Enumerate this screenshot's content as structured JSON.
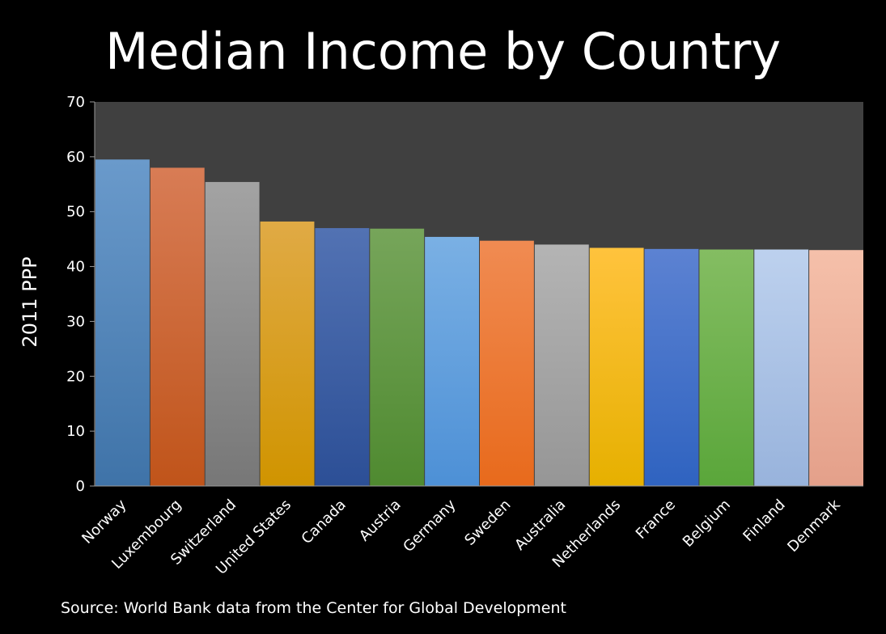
{
  "chart_data": {
    "type": "bar",
    "title": "Median Income by Country",
    "ylabel": "2011 PPP",
    "xlabel": "",
    "ylim": [
      0,
      70
    ],
    "yticks": [
      0,
      10,
      20,
      30,
      40,
      50,
      60,
      70
    ],
    "grid": false,
    "legend": "none",
    "categories": [
      "Norway",
      "Luxembourg",
      "Switzerland",
      "United States",
      "Canada",
      "Austria",
      "Germany",
      "Sweden",
      "Australia",
      "Netherlands",
      "France",
      "Belgium",
      "Finland",
      "Denmark"
    ],
    "values": [
      59.5,
      58.0,
      55.4,
      48.2,
      47.0,
      46.9,
      45.4,
      44.7,
      44.0,
      43.4,
      43.2,
      43.1,
      43.1,
      43.0
    ],
    "colors": [
      [
        "#6a9acb",
        "#3f73a8"
      ],
      [
        "#d87c55",
        "#c0541a"
      ],
      [
        "#a3a3a3",
        "#777777"
      ],
      [
        "#e0aa45",
        "#d09400"
      ],
      [
        "#5272b3",
        "#2c4f96"
      ],
      [
        "#76a55a",
        "#4f8a30"
      ],
      [
        "#7ab0e4",
        "#4d90d6"
      ],
      [
        "#f08b52",
        "#e86a1c"
      ],
      [
        "#b4b4b4",
        "#969696"
      ],
      [
        "#ffc33d",
        "#e6b000"
      ],
      [
        "#5c82d2",
        "#2f63c0"
      ],
      [
        "#84bd62",
        "#5aa63a"
      ],
      [
        "#bdd1ee",
        "#98b3dc"
      ],
      [
        "#f5c0aa",
        "#e4a08a"
      ]
    ],
    "plot_background": "#404040"
  },
  "source": "Source: World Bank data from the Center for Global Development"
}
